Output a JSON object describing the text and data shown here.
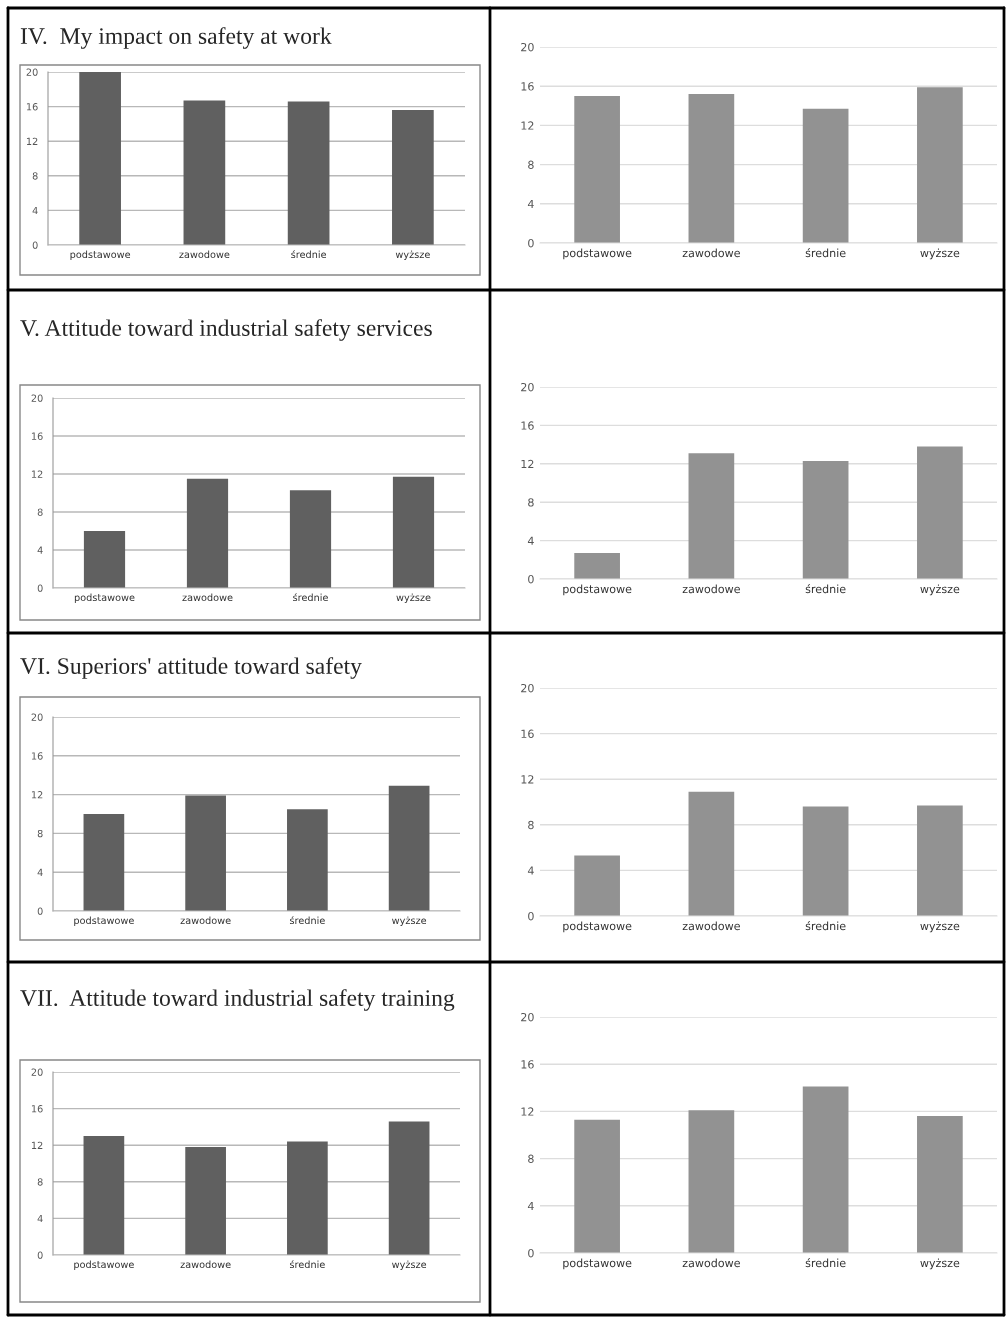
{
  "chart_data": [
    {
      "type": "bar",
      "title": "IV.  My impact on safety at work",
      "categories": [
        "podstawowe",
        "zawodowe",
        "średnie",
        "wyższe"
      ],
      "values": [
        20,
        16.7,
        16.6,
        15.6
      ],
      "color": "#606060",
      "ylim": [
        0,
        20
      ],
      "yticks": [
        0,
        4,
        8,
        12,
        16,
        20
      ],
      "grid": "y"
    },
    {
      "type": "bar",
      "categories": [
        "podstawowe",
        "zawodowe",
        "średnie",
        "wyższe"
      ],
      "values": [
        15.0,
        15.2,
        13.7,
        15.9
      ],
      "color": "#929292",
      "ylim": [
        0,
        20
      ],
      "yticks": [
        0,
        4,
        8,
        12,
        16,
        20
      ],
      "grid": "y"
    },
    {
      "type": "bar",
      "title": "V. Attitude toward industrial safety services",
      "categories": [
        "podstawowe",
        "zawodowe",
        "średnie",
        "wyższe"
      ],
      "values": [
        6.0,
        11.5,
        10.3,
        11.7
      ],
      "color": "#606060",
      "ylim": [
        0,
        20
      ],
      "yticks": [
        0,
        4,
        8,
        12,
        16,
        20
      ],
      "grid": "y"
    },
    {
      "type": "bar",
      "categories": [
        "podstawowe",
        "zawodowe",
        "średnie",
        "wyższe"
      ],
      "values": [
        2.7,
        13.1,
        12.3,
        13.8
      ],
      "color": "#929292",
      "ylim": [
        0,
        20
      ],
      "yticks": [
        0,
        4,
        8,
        12,
        16,
        20
      ],
      "grid": "y"
    },
    {
      "type": "bar",
      "title": "VI. Superiors' attitude toward safety",
      "categories": [
        "podstawowe",
        "zawodowe",
        "średnie",
        "wyższe"
      ],
      "values": [
        10.0,
        11.9,
        10.5,
        12.9
      ],
      "color": "#606060",
      "ylim": [
        0,
        20
      ],
      "yticks": [
        0,
        4,
        8,
        12,
        16,
        20
      ],
      "grid": "y"
    },
    {
      "type": "bar",
      "categories": [
        "podstawowe",
        "zawodowe",
        "średnie",
        "wyższe"
      ],
      "values": [
        5.3,
        10.9,
        9.6,
        9.7
      ],
      "color": "#929292",
      "ylim": [
        0,
        20
      ],
      "yticks": [
        0,
        4,
        8,
        12,
        16,
        20
      ],
      "grid": "y"
    },
    {
      "type": "bar",
      "title": "VII.  Attitude toward industrial safety training",
      "categories": [
        "podstawowe",
        "zawodowe",
        "średnie",
        "wyższe"
      ],
      "values": [
        13.0,
        11.8,
        12.4,
        14.6
      ],
      "color": "#606060",
      "ylim": [
        0,
        20
      ],
      "yticks": [
        0,
        4,
        8,
        12,
        16,
        20
      ],
      "grid": "y"
    },
    {
      "type": "bar",
      "categories": [
        "podstawowe",
        "zawodowe",
        "średnie",
        "wyższe"
      ],
      "values": [
        11.3,
        12.1,
        14.1,
        11.6
      ],
      "color": "#929292",
      "ylim": [
        0,
        20
      ],
      "yticks": [
        0,
        4,
        8,
        12,
        16,
        20
      ],
      "grid": "y"
    }
  ]
}
